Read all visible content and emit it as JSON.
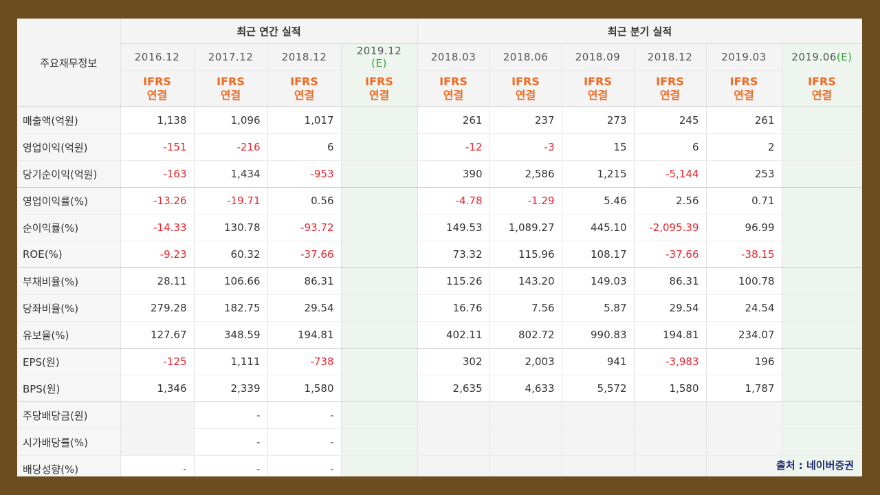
{
  "table": {
    "title": "주요재무정보",
    "groups": {
      "annual": "최근 연간 실적",
      "quarterly": "최근 분기 실적"
    },
    "periods": [
      "2016.12",
      "2017.12",
      "2018.12",
      "2019.12",
      "2018.03",
      "2018.06",
      "2018.09",
      "2018.12",
      "2019.03",
      "2019.06"
    ],
    "estimate_mark": "(E)",
    "ifrs_line1": "IFRS",
    "ifrs_line2": "연결",
    "rows": [
      {
        "label": "매출액(억원)",
        "values": [
          "1,138",
          "1,096",
          "1,017",
          "",
          "261",
          "237",
          "273",
          "245",
          "261",
          ""
        ]
      },
      {
        "label": "영업이익(억원)",
        "values": [
          "-151",
          "-216",
          "6",
          "",
          "-12",
          "-3",
          "15",
          "6",
          "2",
          ""
        ]
      },
      {
        "label": "당기순이익(억원)",
        "values": [
          "-163",
          "1,434",
          "-953",
          "",
          "390",
          "2,586",
          "1,215",
          "-5,144",
          "253",
          ""
        ]
      },
      {
        "label": "영업이익률(%)",
        "values": [
          "-13.26",
          "-19.71",
          "0.56",
          "",
          "-4.78",
          "-1.29",
          "5.46",
          "2.56",
          "0.71",
          ""
        ]
      },
      {
        "label": "순이익률(%)",
        "values": [
          "-14.33",
          "130.78",
          "-93.72",
          "",
          "149.53",
          "1,089.27",
          "445.10",
          "-2,095.39",
          "96.99",
          ""
        ]
      },
      {
        "label": "ROE(%)",
        "values": [
          "-9.23",
          "60.32",
          "-37.66",
          "",
          "73.32",
          "115.96",
          "108.17",
          "-37.66",
          "-38.15",
          ""
        ]
      },
      {
        "label": "부채비율(%)",
        "values": [
          "28.11",
          "106.66",
          "86.31",
          "",
          "115.26",
          "143.20",
          "149.03",
          "86.31",
          "100.78",
          ""
        ]
      },
      {
        "label": "당좌비율(%)",
        "values": [
          "279.28",
          "182.75",
          "29.54",
          "",
          "16.76",
          "7.56",
          "5.87",
          "29.54",
          "24.54",
          ""
        ]
      },
      {
        "label": "유보율(%)",
        "values": [
          "127.67",
          "348.59",
          "194.81",
          "",
          "402.11",
          "802.72",
          "990.83",
          "194.81",
          "234.07",
          ""
        ]
      },
      {
        "label": "EPS(원)",
        "values": [
          "-125",
          "1,111",
          "-738",
          "",
          "302",
          "2,003",
          "941",
          "-3,983",
          "196",
          ""
        ]
      },
      {
        "label": "BPS(원)",
        "values": [
          "1,346",
          "2,339",
          "1,580",
          "",
          "2,635",
          "4,633",
          "5,572",
          "1,580",
          "1,787",
          ""
        ]
      },
      {
        "label": "주당배당금(원)",
        "values": [
          "",
          "-",
          "-",
          "",
          "",
          "",
          "",
          "",
          "",
          ""
        ]
      },
      {
        "label": "시가배당률(%)",
        "values": [
          "",
          "-",
          "-",
          "",
          "",
          "",
          "",
          "",
          "",
          ""
        ]
      },
      {
        "label": "배당성향(%)",
        "values": [
          "-",
          "-",
          "-",
          "",
          "",
          "",
          "",
          "",
          "",
          ""
        ]
      }
    ]
  },
  "source_label": "출처 : 네이버증권",
  "colors": {
    "frame": "#6b4d1f",
    "ifrs": "#f26a21",
    "negative": "#e8242c",
    "estimate_bg": "#eef5ee",
    "estimate_mark": "#3c9c3c",
    "source_text": "#1c2a6b"
  }
}
